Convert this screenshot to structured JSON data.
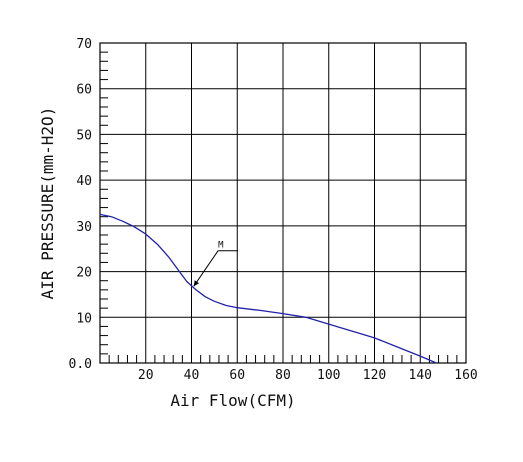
{
  "chart_data": {
    "type": "line",
    "xlabel": "Air Flow(CFM)",
    "ylabel": "AIR PRESSURE(mm-H2O)",
    "xlim": [
      0,
      160
    ],
    "ylim": [
      0,
      70
    ],
    "grid": true,
    "x_ticks": [
      {
        "value": 20,
        "label": "20"
      },
      {
        "value": 40,
        "label": "40"
      },
      {
        "value": 60,
        "label": "60"
      },
      {
        "value": 80,
        "label": "80"
      },
      {
        "value": 100,
        "label": "100"
      },
      {
        "value": 120,
        "label": "120"
      },
      {
        "value": 140,
        "label": "140"
      },
      {
        "value": 160,
        "label": "160"
      }
    ],
    "y_ticks": [
      {
        "value": 0,
        "label": "0.0"
      },
      {
        "value": 10,
        "label": "10"
      },
      {
        "value": 20,
        "label": "20"
      },
      {
        "value": 30,
        "label": "30"
      },
      {
        "value": 40,
        "label": "40"
      },
      {
        "value": 50,
        "label": "50"
      },
      {
        "value": 60,
        "label": "60"
      },
      {
        "value": 70,
        "label": "70"
      }
    ],
    "series": [
      {
        "name": "M",
        "color": "#2222aa",
        "points": [
          [
            0,
            32.5
          ],
          [
            5,
            32.0
          ],
          [
            10,
            31.0
          ],
          [
            15,
            29.8
          ],
          [
            20,
            28.2
          ],
          [
            25,
            26.0
          ],
          [
            30,
            23.2
          ],
          [
            35,
            19.8
          ],
          [
            38,
            17.8
          ],
          [
            42,
            16.0
          ],
          [
            46,
            14.5
          ],
          [
            50,
            13.5
          ],
          [
            55,
            12.6
          ],
          [
            60,
            12.1
          ],
          [
            70,
            11.5
          ],
          [
            80,
            10.8
          ],
          [
            90,
            10.0
          ],
          [
            100,
            8.5
          ],
          [
            110,
            7.0
          ],
          [
            120,
            5.5
          ],
          [
            130,
            3.5
          ],
          [
            140,
            1.5
          ],
          [
            147,
            0.0
          ]
        ]
      }
    ],
    "annotations": [
      {
        "text": "M",
        "x": 56,
        "y": 25,
        "target_x": 41,
        "target_y": 16.8
      }
    ]
  }
}
